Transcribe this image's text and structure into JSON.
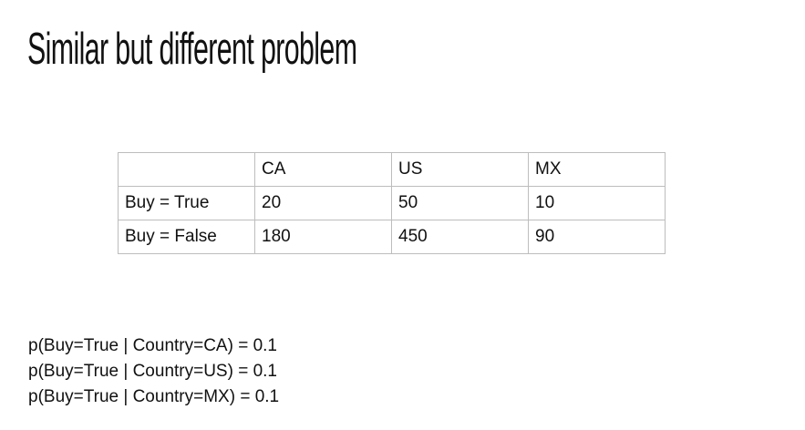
{
  "title": "Similar but different problem",
  "table": {
    "header": [
      "",
      "CA",
      "US",
      "MX"
    ],
    "rows": [
      [
        "Buy = True",
        "20",
        "50",
        "10"
      ],
      [
        "Buy = False",
        "180",
        "450",
        "90"
      ]
    ]
  },
  "probabilities": [
    "p(Buy=True | Country=CA) = 0.1",
    "p(Buy=True | Country=US) = 0.1",
    "p(Buy=True | Country=MX) = 0.1"
  ]
}
